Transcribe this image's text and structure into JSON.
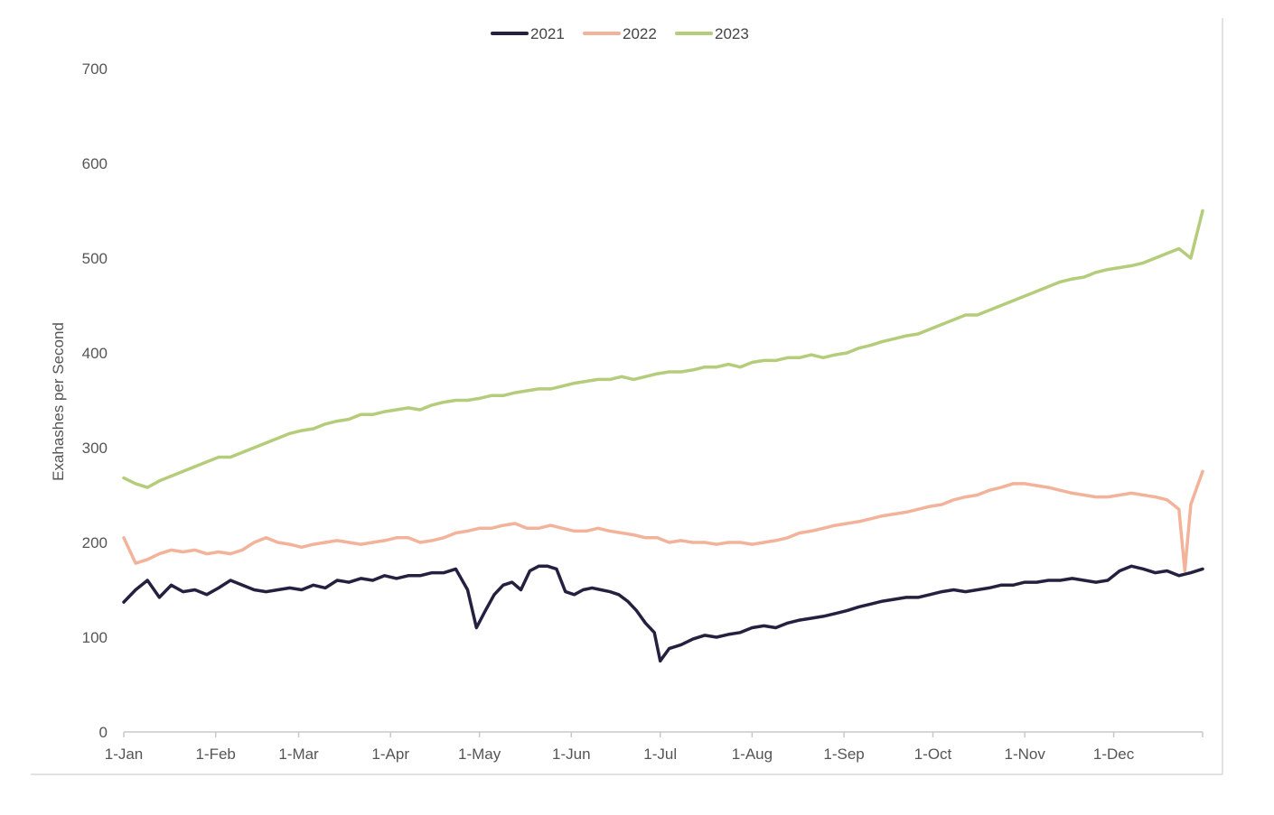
{
  "chart_data": {
    "type": "line",
    "title": "",
    "xlabel": "",
    "ylabel": "Exahashes per Second",
    "ylim": [
      0,
      700
    ],
    "yticks": [
      0,
      100,
      200,
      300,
      400,
      500,
      600,
      700
    ],
    "x_domain_days": [
      1,
      365
    ],
    "xticks": [
      {
        "label": "1-Jan",
        "day": 1
      },
      {
        "label": "1-Feb",
        "day": 32
      },
      {
        "label": "1-Mar",
        "day": 60
      },
      {
        "label": "1-Apr",
        "day": 91
      },
      {
        "label": "1-May",
        "day": 121
      },
      {
        "label": "1-Jun",
        "day": 152
      },
      {
        "label": "1-Jul",
        "day": 182
      },
      {
        "label": "1-Aug",
        "day": 213
      },
      {
        "label": "1-Sep",
        "day": 244
      },
      {
        "label": "1-Oct",
        "day": 274
      },
      {
        "label": "1-Nov",
        "day": 305
      },
      {
        "label": "1-Dec",
        "day": 335
      }
    ],
    "grid": false,
    "legend_position": "top-center",
    "series": [
      {
        "name": "2021",
        "color": "#24203f",
        "values": [
          [
            1,
            137
          ],
          [
            5,
            150
          ],
          [
            9,
            160
          ],
          [
            13,
            142
          ],
          [
            17,
            155
          ],
          [
            21,
            148
          ],
          [
            25,
            150
          ],
          [
            29,
            145
          ],
          [
            33,
            152
          ],
          [
            37,
            160
          ],
          [
            41,
            155
          ],
          [
            45,
            150
          ],
          [
            49,
            148
          ],
          [
            53,
            150
          ],
          [
            57,
            152
          ],
          [
            61,
            150
          ],
          [
            65,
            155
          ],
          [
            69,
            152
          ],
          [
            73,
            160
          ],
          [
            77,
            158
          ],
          [
            81,
            162
          ],
          [
            85,
            160
          ],
          [
            89,
            165
          ],
          [
            93,
            162
          ],
          [
            97,
            165
          ],
          [
            101,
            165
          ],
          [
            105,
            168
          ],
          [
            109,
            168
          ],
          [
            113,
            172
          ],
          [
            117,
            150
          ],
          [
            120,
            110
          ],
          [
            123,
            128
          ],
          [
            126,
            145
          ],
          [
            129,
            155
          ],
          [
            132,
            158
          ],
          [
            135,
            150
          ],
          [
            138,
            170
          ],
          [
            141,
            175
          ],
          [
            144,
            175
          ],
          [
            147,
            172
          ],
          [
            150,
            148
          ],
          [
            153,
            145
          ],
          [
            156,
            150
          ],
          [
            159,
            152
          ],
          [
            162,
            150
          ],
          [
            165,
            148
          ],
          [
            168,
            145
          ],
          [
            171,
            138
          ],
          [
            174,
            128
          ],
          [
            177,
            115
          ],
          [
            180,
            105
          ],
          [
            182,
            75
          ],
          [
            185,
            88
          ],
          [
            189,
            92
          ],
          [
            193,
            98
          ],
          [
            197,
            102
          ],
          [
            201,
            100
          ],
          [
            205,
            103
          ],
          [
            209,
            105
          ],
          [
            213,
            110
          ],
          [
            217,
            112
          ],
          [
            221,
            110
          ],
          [
            225,
            115
          ],
          [
            229,
            118
          ],
          [
            233,
            120
          ],
          [
            237,
            122
          ],
          [
            241,
            125
          ],
          [
            245,
            128
          ],
          [
            249,
            132
          ],
          [
            253,
            135
          ],
          [
            257,
            138
          ],
          [
            261,
            140
          ],
          [
            265,
            142
          ],
          [
            269,
            142
          ],
          [
            273,
            145
          ],
          [
            277,
            148
          ],
          [
            281,
            150
          ],
          [
            285,
            148
          ],
          [
            289,
            150
          ],
          [
            293,
            152
          ],
          [
            297,
            155
          ],
          [
            301,
            155
          ],
          [
            305,
            158
          ],
          [
            309,
            158
          ],
          [
            313,
            160
          ],
          [
            317,
            160
          ],
          [
            321,
            162
          ],
          [
            325,
            160
          ],
          [
            329,
            158
          ],
          [
            333,
            160
          ],
          [
            337,
            170
          ],
          [
            341,
            175
          ],
          [
            345,
            172
          ],
          [
            349,
            168
          ],
          [
            353,
            170
          ],
          [
            357,
            165
          ],
          [
            361,
            168
          ],
          [
            365,
            172
          ]
        ]
      },
      {
        "name": "2022",
        "color": "#f2b39a",
        "values": [
          [
            1,
            205
          ],
          [
            5,
            178
          ],
          [
            9,
            182
          ],
          [
            13,
            188
          ],
          [
            17,
            192
          ],
          [
            21,
            190
          ],
          [
            25,
            192
          ],
          [
            29,
            188
          ],
          [
            33,
            190
          ],
          [
            37,
            188
          ],
          [
            41,
            192
          ],
          [
            45,
            200
          ],
          [
            49,
            205
          ],
          [
            53,
            200
          ],
          [
            57,
            198
          ],
          [
            61,
            195
          ],
          [
            65,
            198
          ],
          [
            69,
            200
          ],
          [
            73,
            202
          ],
          [
            77,
            200
          ],
          [
            81,
            198
          ],
          [
            85,
            200
          ],
          [
            89,
            202
          ],
          [
            93,
            205
          ],
          [
            97,
            205
          ],
          [
            101,
            200
          ],
          [
            105,
            202
          ],
          [
            109,
            205
          ],
          [
            113,
            210
          ],
          [
            117,
            212
          ],
          [
            121,
            215
          ],
          [
            125,
            215
          ],
          [
            129,
            218
          ],
          [
            133,
            220
          ],
          [
            137,
            215
          ],
          [
            141,
            215
          ],
          [
            145,
            218
          ],
          [
            149,
            215
          ],
          [
            153,
            212
          ],
          [
            157,
            212
          ],
          [
            161,
            215
          ],
          [
            165,
            212
          ],
          [
            169,
            210
          ],
          [
            173,
            208
          ],
          [
            177,
            205
          ],
          [
            181,
            205
          ],
          [
            185,
            200
          ],
          [
            189,
            202
          ],
          [
            193,
            200
          ],
          [
            197,
            200
          ],
          [
            201,
            198
          ],
          [
            205,
            200
          ],
          [
            209,
            200
          ],
          [
            213,
            198
          ],
          [
            217,
            200
          ],
          [
            221,
            202
          ],
          [
            225,
            205
          ],
          [
            229,
            210
          ],
          [
            233,
            212
          ],
          [
            237,
            215
          ],
          [
            241,
            218
          ],
          [
            245,
            220
          ],
          [
            249,
            222
          ],
          [
            253,
            225
          ],
          [
            257,
            228
          ],
          [
            261,
            230
          ],
          [
            265,
            232
          ],
          [
            269,
            235
          ],
          [
            273,
            238
          ],
          [
            277,
            240
          ],
          [
            281,
            245
          ],
          [
            285,
            248
          ],
          [
            289,
            250
          ],
          [
            293,
            255
          ],
          [
            297,
            258
          ],
          [
            301,
            262
          ],
          [
            305,
            262
          ],
          [
            309,
            260
          ],
          [
            313,
            258
          ],
          [
            317,
            255
          ],
          [
            321,
            252
          ],
          [
            325,
            250
          ],
          [
            329,
            248
          ],
          [
            333,
            248
          ],
          [
            337,
            250
          ],
          [
            341,
            252
          ],
          [
            345,
            250
          ],
          [
            349,
            248
          ],
          [
            353,
            245
          ],
          [
            357,
            235
          ],
          [
            359,
            170
          ],
          [
            361,
            240
          ],
          [
            365,
            275
          ]
        ]
      },
      {
        "name": "2023",
        "color": "#b5cc7b",
        "values": [
          [
            1,
            268
          ],
          [
            5,
            262
          ],
          [
            9,
            258
          ],
          [
            13,
            265
          ],
          [
            17,
            270
          ],
          [
            21,
            275
          ],
          [
            25,
            280
          ],
          [
            29,
            285
          ],
          [
            33,
            290
          ],
          [
            37,
            290
          ],
          [
            41,
            295
          ],
          [
            45,
            300
          ],
          [
            49,
            305
          ],
          [
            53,
            310
          ],
          [
            57,
            315
          ],
          [
            61,
            318
          ],
          [
            65,
            320
          ],
          [
            69,
            325
          ],
          [
            73,
            328
          ],
          [
            77,
            330
          ],
          [
            81,
            335
          ],
          [
            85,
            335
          ],
          [
            89,
            338
          ],
          [
            93,
            340
          ],
          [
            97,
            342
          ],
          [
            101,
            340
          ],
          [
            105,
            345
          ],
          [
            109,
            348
          ],
          [
            113,
            350
          ],
          [
            117,
            350
          ],
          [
            121,
            352
          ],
          [
            125,
            355
          ],
          [
            129,
            355
          ],
          [
            133,
            358
          ],
          [
            137,
            360
          ],
          [
            141,
            362
          ],
          [
            145,
            362
          ],
          [
            149,
            365
          ],
          [
            153,
            368
          ],
          [
            157,
            370
          ],
          [
            161,
            372
          ],
          [
            165,
            372
          ],
          [
            169,
            375
          ],
          [
            173,
            372
          ],
          [
            177,
            375
          ],
          [
            181,
            378
          ],
          [
            185,
            380
          ],
          [
            189,
            380
          ],
          [
            193,
            382
          ],
          [
            197,
            385
          ],
          [
            201,
            385
          ],
          [
            205,
            388
          ],
          [
            209,
            385
          ],
          [
            213,
            390
          ],
          [
            217,
            392
          ],
          [
            221,
            392
          ],
          [
            225,
            395
          ],
          [
            229,
            395
          ],
          [
            233,
            398
          ],
          [
            237,
            395
          ],
          [
            241,
            398
          ],
          [
            245,
            400
          ],
          [
            249,
            405
          ],
          [
            253,
            408
          ],
          [
            257,
            412
          ],
          [
            261,
            415
          ],
          [
            265,
            418
          ],
          [
            269,
            420
          ],
          [
            273,
            425
          ],
          [
            277,
            430
          ],
          [
            281,
            435
          ],
          [
            285,
            440
          ],
          [
            289,
            440
          ],
          [
            293,
            445
          ],
          [
            297,
            450
          ],
          [
            301,
            455
          ],
          [
            305,
            460
          ],
          [
            309,
            465
          ],
          [
            313,
            470
          ],
          [
            317,
            475
          ],
          [
            321,
            478
          ],
          [
            325,
            480
          ],
          [
            329,
            485
          ],
          [
            333,
            488
          ],
          [
            337,
            490
          ],
          [
            341,
            492
          ],
          [
            345,
            495
          ],
          [
            349,
            500
          ],
          [
            353,
            505
          ],
          [
            357,
            510
          ],
          [
            361,
            500
          ],
          [
            365,
            550
          ]
        ]
      }
    ]
  }
}
